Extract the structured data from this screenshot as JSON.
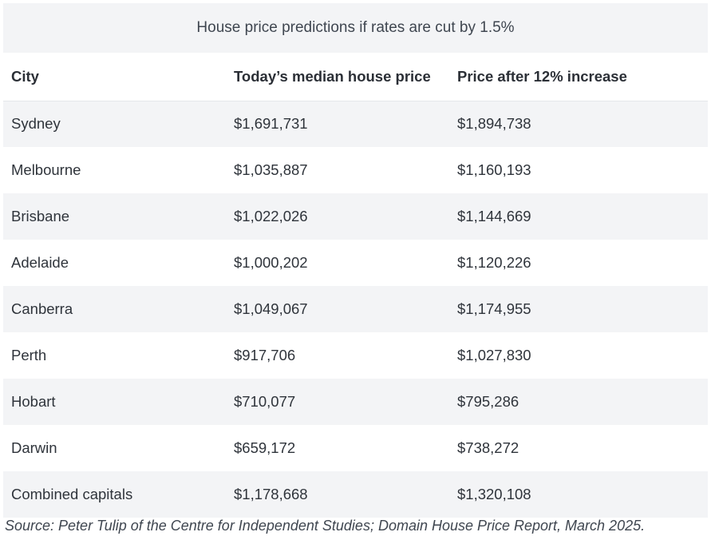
{
  "table": {
    "caption": "House price predictions if rates are cut by 1.5%",
    "headers": [
      "City",
      "Today’s median house price",
      "Price after 12% increase"
    ],
    "rows": [
      [
        "Sydney",
        "$1,691,731",
        "$1,894,738"
      ],
      [
        "Melbourne",
        "$1,035,887",
        "$1,160,193"
      ],
      [
        "Brisbane",
        "$1,022,026",
        "$1,144,669"
      ],
      [
        "Adelaide",
        "$1,000,202",
        "$1,120,226"
      ],
      [
        "Canberra",
        "$1,049,067",
        "$1,174,955"
      ],
      [
        "Perth",
        "$917,706",
        "$1,027,830"
      ],
      [
        "Hobart",
        "$710,077",
        "$795,286"
      ],
      [
        "Darwin",
        "$659,172",
        "$738,272"
      ],
      [
        "Combined capitals",
        "$1,178,668",
        "$1,320,108"
      ]
    ]
  },
  "source": "Source: Peter Tulip of the Centre for Independent Studies; Domain House Price Report, March 2025."
}
